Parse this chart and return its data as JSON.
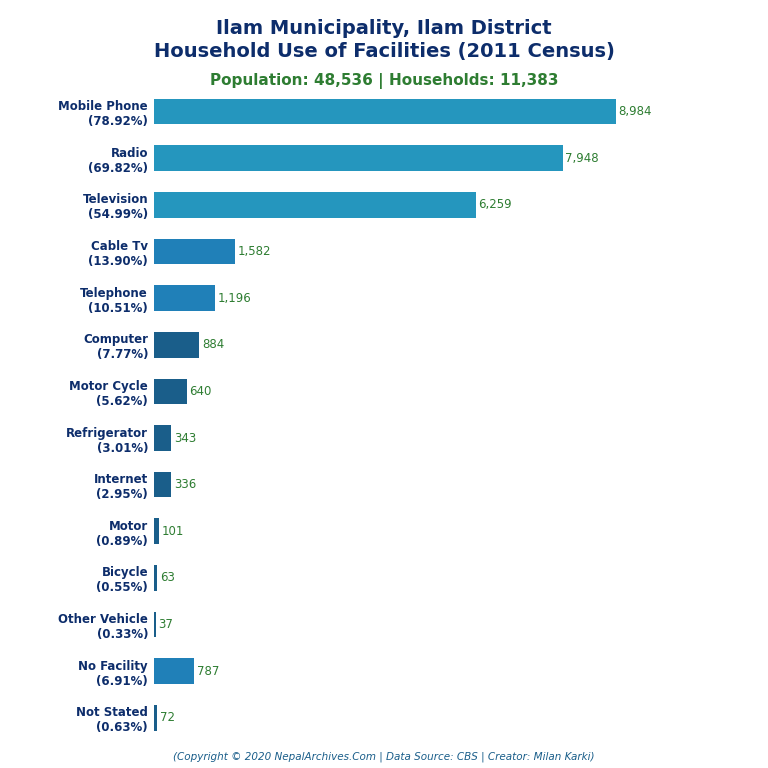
{
  "title_line1": "Ilam Municipality, Ilam District",
  "title_line2": "Household Use of Facilities (2011 Census)",
  "subtitle": "Population: 48,536 | Households: 11,383",
  "footer": "(Copyright © 2020 NepalArchives.Com | Data Source: CBS | Creator: Milan Karki)",
  "categories": [
    "Not Stated\n(0.63%)",
    "No Facility\n(6.91%)",
    "Other Vehicle\n(0.33%)",
    "Bicycle\n(0.55%)",
    "Motor\n(0.89%)",
    "Internet\n(2.95%)",
    "Refrigerator\n(3.01%)",
    "Motor Cycle\n(5.62%)",
    "Computer\n(7.77%)",
    "Telephone\n(10.51%)",
    "Cable Tv\n(13.90%)",
    "Television\n(54.99%)",
    "Radio\n(69.82%)",
    "Mobile Phone\n(78.92%)"
  ],
  "values": [
    72,
    787,
    37,
    63,
    101,
    336,
    343,
    640,
    884,
    1196,
    1582,
    6259,
    7948,
    8984
  ],
  "bar_colors": [
    "#1a5e8a",
    "#2080b8",
    "#1a5e8a",
    "#1a5e8a",
    "#1a5e8a",
    "#1a5e8a",
    "#1a5e8a",
    "#1a5e8a",
    "#1a5e8a",
    "#2080b8",
    "#2080b8",
    "#2596be",
    "#2596be",
    "#2596be"
  ],
  "title_color": "#0d2d6b",
  "subtitle_color": "#2e7d32",
  "label_color": "#0d2d6b",
  "value_color": "#2e7d32",
  "footer_color": "#1a5e8a",
  "bg_color": "#ffffff",
  "xlim": [
    0,
    10000
  ],
  "title_fontsize": 14,
  "subtitle_fontsize": 11,
  "label_fontsize": 8.5,
  "value_fontsize": 8.5,
  "footer_fontsize": 7.5
}
